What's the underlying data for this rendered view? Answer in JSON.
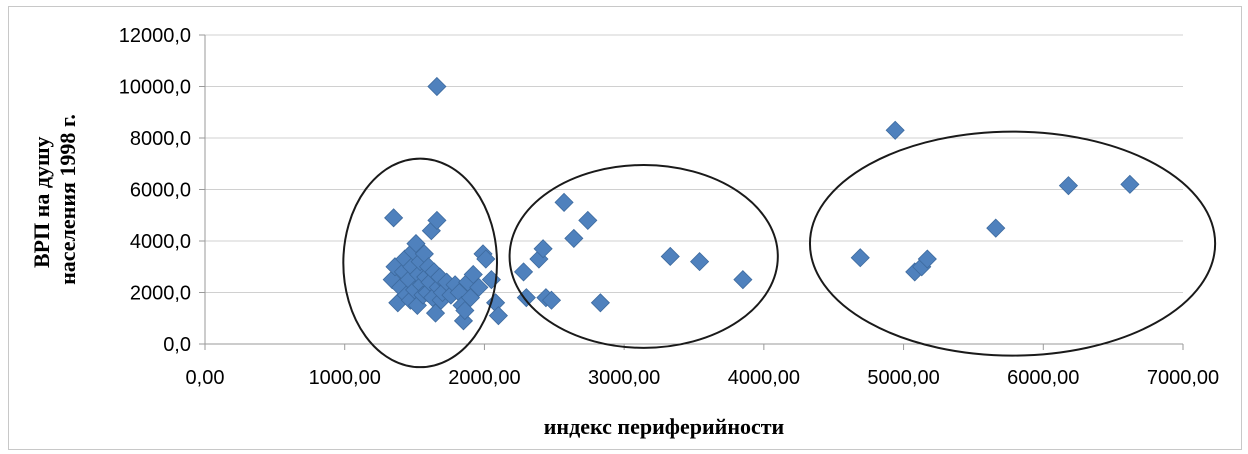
{
  "chart_data": {
    "type": "scatter",
    "title": "",
    "xlabel": "индекс периферийности",
    "ylabel_lines": [
      "ВРП на душу",
      "населения 1998 г."
    ],
    "xlim": [
      0,
      7000
    ],
    "ylim": [
      0,
      12000
    ],
    "x_ticks": [
      0,
      1000,
      2000,
      3000,
      4000,
      5000,
      6000,
      7000
    ],
    "x_tick_labels": [
      "0,00",
      "1000,00",
      "2000,00",
      "3000,00",
      "4000,00",
      "5000,00",
      "6000,00",
      "7000,00"
    ],
    "y_ticks": [
      0,
      2000,
      4000,
      6000,
      8000,
      10000,
      12000
    ],
    "y_tick_labels": [
      "0,0",
      "2000,0",
      "4000,0",
      "6000,0",
      "8000,0",
      "10000,0",
      "12000,0"
    ],
    "grid": "horizontal",
    "legend": "none",
    "marker": "diamond",
    "color": "#4f81bd",
    "points": [
      {
        "x": 1350,
        "y": 4900
      },
      {
        "x": 1340,
        "y": 2500
      },
      {
        "x": 1360,
        "y": 3000
      },
      {
        "x": 1380,
        "y": 1600
      },
      {
        "x": 1400,
        "y": 2200
      },
      {
        "x": 1420,
        "y": 2800
      },
      {
        "x": 1430,
        "y": 3300
      },
      {
        "x": 1440,
        "y": 1900
      },
      {
        "x": 1460,
        "y": 2500
      },
      {
        "x": 1470,
        "y": 1700
      },
      {
        "x": 1480,
        "y": 3000
      },
      {
        "x": 1490,
        "y": 3600
      },
      {
        "x": 1500,
        "y": 2100
      },
      {
        "x": 1510,
        "y": 3900
      },
      {
        "x": 1520,
        "y": 1500
      },
      {
        "x": 1530,
        "y": 2700
      },
      {
        "x": 1540,
        "y": 3200
      },
      {
        "x": 1550,
        "y": 2300
      },
      {
        "x": 1560,
        "y": 1900
      },
      {
        "x": 1570,
        "y": 3500
      },
      {
        "x": 1580,
        "y": 2600
      },
      {
        "x": 1590,
        "y": 2000
      },
      {
        "x": 1600,
        "y": 3000
      },
      {
        "x": 1610,
        "y": 2400
      },
      {
        "x": 1620,
        "y": 4400
      },
      {
        "x": 1630,
        "y": 1800
      },
      {
        "x": 1640,
        "y": 2800
      },
      {
        "x": 1650,
        "y": 1200
      },
      {
        "x": 1660,
        "y": 4800
      },
      {
        "x": 1670,
        "y": 2200
      },
      {
        "x": 1680,
        "y": 2600
      },
      {
        "x": 1690,
        "y": 1700
      },
      {
        "x": 1700,
        "y": 2000
      },
      {
        "x": 1730,
        "y": 2400
      },
      {
        "x": 1760,
        "y": 1900
      },
      {
        "x": 1790,
        "y": 2300
      },
      {
        "x": 1820,
        "y": 2000
      },
      {
        "x": 1840,
        "y": 1500
      },
      {
        "x": 1850,
        "y": 900
      },
      {
        "x": 1860,
        "y": 1300
      },
      {
        "x": 1880,
        "y": 2400
      },
      {
        "x": 1900,
        "y": 1800
      },
      {
        "x": 1920,
        "y": 2700
      },
      {
        "x": 1960,
        "y": 2200
      },
      {
        "x": 1990,
        "y": 3500
      },
      {
        "x": 2010,
        "y": 3300
      },
      {
        "x": 2050,
        "y": 2500
      },
      {
        "x": 2080,
        "y": 1600
      },
      {
        "x": 2100,
        "y": 1100
      },
      {
        "x": 1660,
        "y": 10000
      },
      {
        "x": 2280,
        "y": 2800
      },
      {
        "x": 2300,
        "y": 1800
      },
      {
        "x": 2390,
        "y": 3300
      },
      {
        "x": 2420,
        "y": 3700
      },
      {
        "x": 2440,
        "y": 1800
      },
      {
        "x": 2480,
        "y": 1700
      },
      {
        "x": 2570,
        "y": 5500
      },
      {
        "x": 2640,
        "y": 4100
      },
      {
        "x": 2740,
        "y": 4800
      },
      {
        "x": 2830,
        "y": 1600
      },
      {
        "x": 3330,
        "y": 3400
      },
      {
        "x": 3540,
        "y": 3200
      },
      {
        "x": 3850,
        "y": 2500
      },
      {
        "x": 4690,
        "y": 3350
      },
      {
        "x": 4940,
        "y": 8300
      },
      {
        "x": 5080,
        "y": 2800
      },
      {
        "x": 5130,
        "y": 3000
      },
      {
        "x": 5170,
        "y": 3300
      },
      {
        "x": 5660,
        "y": 4500
      },
      {
        "x": 6180,
        "y": 6150
      },
      {
        "x": 6620,
        "y": 6200
      }
    ],
    "annotations": [
      {
        "shape": "ellipse",
        "cx": 1540,
        "cy": 3150,
        "rx": 550,
        "ry": 4050
      },
      {
        "shape": "ellipse",
        "cx": 3140,
        "cy": 3400,
        "rx": 960,
        "ry": 3550
      },
      {
        "shape": "ellipse",
        "cx": 5780,
        "cy": 3900,
        "rx": 1450,
        "ry": 4350
      }
    ]
  }
}
